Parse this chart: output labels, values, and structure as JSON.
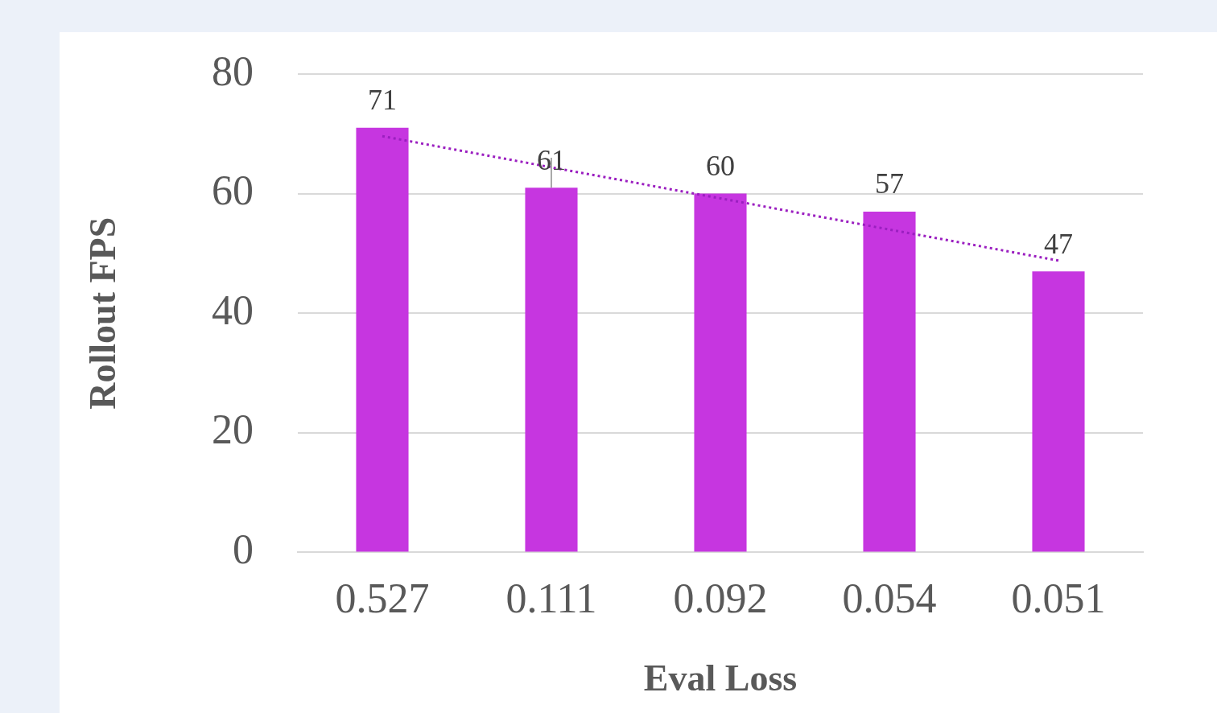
{
  "chart_data": {
    "type": "bar",
    "xlabel": "Eval Loss",
    "ylabel": "Rollout FPS",
    "categories": [
      "0.527",
      "0.111",
      "0.092",
      "0.054",
      "0.051"
    ],
    "series": [
      {
        "color": "#c636e0",
        "values": [
          71,
          61,
          60,
          57,
          47
        ],
        "value_labels": [
          "71",
          "61",
          "60",
          "57",
          "47"
        ],
        "errors": [
          null,
          [
            61,
            66
          ],
          null,
          null,
          null
        ]
      },
      {
        "type": "line",
        "color": "#9b1fc0",
        "line_style": "dotted",
        "marker": "none",
        "values": [
          69.6,
          64.4,
          59.2,
          54,
          48.8
        ]
      }
    ],
    "ylim": [
      0,
      80
    ],
    "yticks": [
      0,
      20,
      40,
      60,
      80
    ],
    "grid": "y",
    "legend": false
  }
}
